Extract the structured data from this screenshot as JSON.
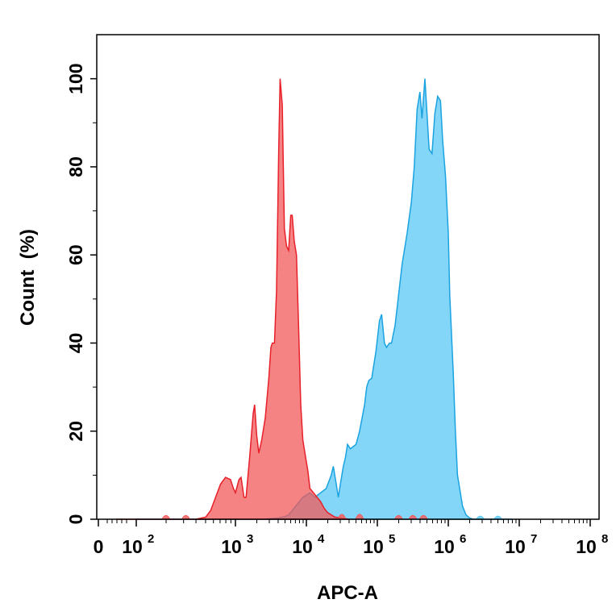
{
  "chart_data": {
    "type": "area",
    "title": "",
    "xlabel": "APC-A",
    "ylabel": "Count  (%)",
    "xscale": "biexponential (linear near 0, log above)",
    "ylim": [
      0,
      110
    ],
    "grid": false,
    "legend": "none",
    "x_ticks": [
      {
        "value": 0,
        "base": "0",
        "exp": ""
      },
      {
        "value": 100,
        "base": "10",
        "exp": "2"
      },
      {
        "value": 1000,
        "base": "10",
        "exp": "3"
      },
      {
        "value": 10000,
        "base": "10",
        "exp": "4"
      },
      {
        "value": 100000,
        "base": "10",
        "exp": "5"
      },
      {
        "value": 1000000,
        "base": "10",
        "exp": "6"
      },
      {
        "value": 10000000,
        "base": "10",
        "exp": "7"
      },
      {
        "value": 100000000,
        "base": "10",
        "exp": "8"
      }
    ],
    "y_ticks": [
      {
        "value": 0,
        "label": "0"
      },
      {
        "value": 20,
        "label": "20"
      },
      {
        "value": 40,
        "label": "40"
      },
      {
        "value": 60,
        "label": "60"
      },
      {
        "value": 80,
        "label": "80"
      },
      {
        "value": 100,
        "label": "100"
      }
    ],
    "series": [
      {
        "color": "#5BC8F5",
        "stroke": "#1AA3E0",
        "points": [
          [
            2.0,
            0
          ],
          [
            2.3,
            0
          ],
          [
            3.4,
            0
          ],
          [
            3.6,
            0.3
          ],
          [
            3.7,
            0.6
          ],
          [
            3.75,
            1.0
          ],
          [
            3.8,
            2.0
          ],
          [
            3.85,
            3.0
          ],
          [
            3.95,
            5.0
          ],
          [
            4.05,
            6.0
          ],
          [
            4.12,
            5.0
          ],
          [
            4.2,
            6.0
          ],
          [
            4.28,
            7.0
          ],
          [
            4.35,
            10.0
          ],
          [
            4.38,
            12.0
          ],
          [
            4.42,
            8.0
          ],
          [
            4.45,
            5.0
          ],
          [
            4.48,
            8.0
          ],
          [
            4.52,
            12.0
          ],
          [
            4.55,
            14.0
          ],
          [
            4.58,
            17.0
          ],
          [
            4.62,
            16.0
          ],
          [
            4.7,
            17.0
          ],
          [
            4.75,
            20.0
          ],
          [
            4.82,
            26.0
          ],
          [
            4.85,
            30.0
          ],
          [
            4.88,
            31.5
          ],
          [
            4.92,
            32.0
          ],
          [
            4.95,
            35.0
          ],
          [
            4.98,
            38.0
          ],
          [
            5.03,
            45.0
          ],
          [
            5.06,
            46.5
          ],
          [
            5.1,
            40.0
          ],
          [
            5.13,
            39.0
          ],
          [
            5.17,
            40.0
          ],
          [
            5.2,
            40.0
          ],
          [
            5.25,
            44.0
          ],
          [
            5.3,
            51.0
          ],
          [
            5.35,
            58.0
          ],
          [
            5.42,
            65.0
          ],
          [
            5.48,
            72.0
          ],
          [
            5.52,
            80.0
          ],
          [
            5.56,
            93.0
          ],
          [
            5.6,
            97.0
          ],
          [
            5.63,
            91.0
          ],
          [
            5.67,
            100.0
          ],
          [
            5.7,
            92.0
          ],
          [
            5.73,
            84.0
          ],
          [
            5.77,
            83.0
          ],
          [
            5.81,
            92.0
          ],
          [
            5.85,
            96.0
          ],
          [
            5.89,
            95.0
          ],
          [
            5.92,
            86.0
          ],
          [
            5.96,
            78.0
          ],
          [
            6.0,
            65.0
          ],
          [
            6.02,
            51.0
          ],
          [
            6.04,
            44.0
          ],
          [
            6.07,
            33.0
          ],
          [
            6.1,
            20.0
          ],
          [
            6.13,
            10.0
          ],
          [
            6.16,
            7.0
          ],
          [
            6.2,
            3.0
          ],
          [
            6.25,
            1.0
          ],
          [
            6.3,
            0.3
          ],
          [
            6.35,
            0
          ],
          [
            6.9,
            0
          ]
        ]
      },
      {
        "color": "#F25A5A",
        "stroke": "#E8202A",
        "points": [
          [
            1.8,
            0
          ],
          [
            2.6,
            0
          ],
          [
            2.7,
            0.5
          ],
          [
            2.75,
            2.0
          ],
          [
            2.8,
            5.0
          ],
          [
            2.85,
            8.0
          ],
          [
            2.9,
            9.5
          ],
          [
            2.95,
            9.0
          ],
          [
            2.98,
            7.0
          ],
          [
            3.0,
            6.0
          ],
          [
            3.05,
            9.0
          ],
          [
            3.08,
            9.5
          ],
          [
            3.12,
            5.0
          ],
          [
            3.15,
            5.0
          ],
          [
            3.2,
            14.0
          ],
          [
            3.25,
            24.0
          ],
          [
            3.27,
            26.0
          ],
          [
            3.3,
            19.0
          ],
          [
            3.33,
            15.0
          ],
          [
            3.37,
            18.0
          ],
          [
            3.42,
            23.0
          ],
          [
            3.47,
            32.0
          ],
          [
            3.5,
            39.0
          ],
          [
            3.52,
            40.0
          ],
          [
            3.55,
            40.0
          ],
          [
            3.58,
            52.0
          ],
          [
            3.61,
            84.0
          ],
          [
            3.63,
            100.0
          ],
          [
            3.66,
            94.0
          ],
          [
            3.69,
            66.0
          ],
          [
            3.72,
            62.0
          ],
          [
            3.75,
            61.0
          ],
          [
            3.78,
            69.0
          ],
          [
            3.8,
            69.0
          ],
          [
            3.83,
            63.0
          ],
          [
            3.86,
            60.0
          ],
          [
            3.89,
            44.0
          ],
          [
            3.92,
            26.0
          ],
          [
            3.95,
            18.0
          ],
          [
            3.98,
            15.0
          ],
          [
            4.02,
            11.0
          ],
          [
            4.05,
            7.0
          ],
          [
            4.1,
            6.0
          ],
          [
            4.15,
            5.0
          ],
          [
            4.2,
            4.0
          ],
          [
            4.25,
            2.5
          ],
          [
            4.3,
            1.5
          ],
          [
            4.4,
            0.5
          ],
          [
            4.6,
            0
          ]
        ]
      }
    ],
    "blips": [
      {
        "center": 2.3,
        "height": 1.0,
        "color": "#F25A5A"
      },
      {
        "center": 2.5,
        "height": 1.0,
        "color": "#F25A5A"
      },
      {
        "center": 4.5,
        "height": 1.5,
        "color": "#F25A5A"
      },
      {
        "center": 4.75,
        "height": 1.5,
        "color": "#F25A5A"
      },
      {
        "center": 5.3,
        "height": 1.0,
        "color": "#F25A5A"
      },
      {
        "center": 5.5,
        "height": 1.0,
        "color": "#F25A5A"
      },
      {
        "center": 5.65,
        "height": 1.0,
        "color": "#F25A5A"
      },
      {
        "center": 6.45,
        "height": 0.7,
        "color": "#5BC8F5"
      },
      {
        "center": 6.7,
        "height": 0.7,
        "color": "#5BC8F5"
      }
    ]
  }
}
